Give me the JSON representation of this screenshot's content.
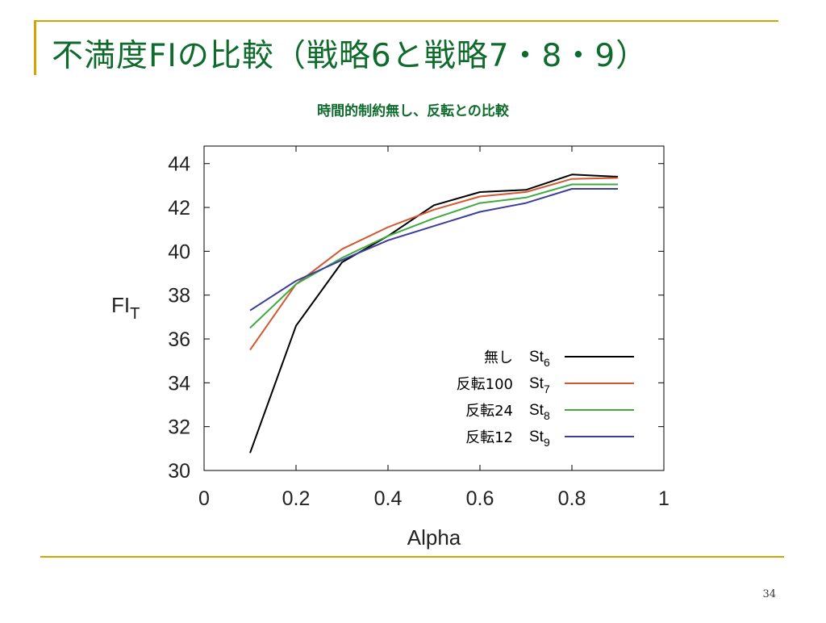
{
  "slide": {
    "title": "不満度FIの比較（戦略6と戦略7・8・9）",
    "page_number": "34"
  },
  "colors": {
    "title": "#0e6b2c",
    "rule": "#d8a200"
  },
  "chart_data": {
    "type": "line",
    "title": "時間的制約無し、反転との比較",
    "xlabel": "Alpha",
    "ylabel": "FI",
    "ylabel_sub": "T",
    "xlim": [
      0,
      1
    ],
    "ylim": [
      30,
      44.8
    ],
    "xticks": [
      "0",
      "0.2",
      "0.4",
      "0.6",
      "0.8",
      "1"
    ],
    "yticks": [
      "30",
      "32",
      "34",
      "36",
      "38",
      "40",
      "42",
      "44"
    ],
    "x": [
      0.1,
      0.2,
      0.3,
      0.4,
      0.5,
      0.6,
      0.7,
      0.8,
      0.9
    ],
    "grid": false,
    "legend_position": "bottom-right",
    "series": [
      {
        "name": "無し",
        "label_main": "St",
        "label_sub": "6",
        "color": "#000000",
        "values": [
          30.8,
          36.6,
          39.5,
          40.7,
          42.1,
          42.7,
          42.8,
          43.5,
          43.4
        ]
      },
      {
        "name": "反転100",
        "label_main": "St",
        "label_sub": "7",
        "color": "#d4572f",
        "values": [
          35.5,
          38.5,
          40.1,
          41.1,
          41.9,
          42.5,
          42.7,
          43.3,
          43.35
        ]
      },
      {
        "name": "反転24",
        "label_main": "St",
        "label_sub": "8",
        "color": "#3faa3f",
        "values": [
          36.5,
          38.5,
          39.7,
          40.7,
          41.5,
          42.2,
          42.45,
          43.05,
          43.05
        ]
      },
      {
        "name": "反転12",
        "label_main": "St",
        "label_sub": "9",
        "color": "#3d3d9e",
        "values": [
          37.3,
          38.65,
          39.6,
          40.5,
          41.15,
          41.8,
          42.2,
          42.85,
          42.85
        ]
      }
    ]
  }
}
